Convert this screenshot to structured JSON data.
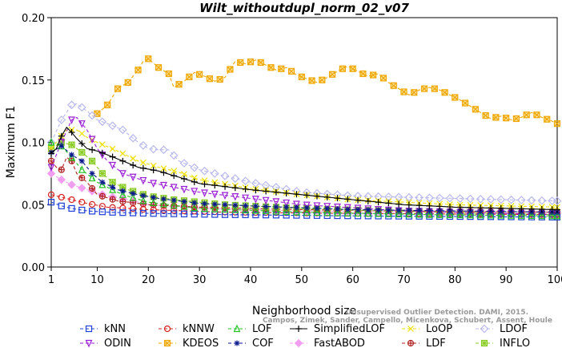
{
  "credit": {
    "line1": "Unsupervised Outlier Detection. DAMI, 2015.",
    "line2": "Campos, Zimek, Sander, Campello, Micenkova, Schubert, Assent, Houle"
  },
  "chart_data": {
    "type": "line",
    "title": "Wilt_withoutdupl_norm_02_v07",
    "xlabel": "Neighborhood size",
    "ylabel": "Maximum F1",
    "xlim": [
      1,
      100
    ],
    "ylim": [
      0,
      0.2
    ],
    "xticks": [
      1,
      10,
      20,
      30,
      40,
      50,
      60,
      70,
      80,
      90,
      100
    ],
    "yticks": [
      0.0,
      0.05,
      0.1,
      0.15,
      0.2
    ],
    "ytick_labels": [
      "0.00",
      "0.05",
      "0.10",
      "0.15",
      "0.20"
    ],
    "grid": false,
    "legend_position": "bottom",
    "series": [
      {
        "name": "kNN",
        "color": "#1f3fd6",
        "marker": "square",
        "dash": "4,3",
        "points": [
          [
            1,
            0.052
          ],
          [
            3,
            0.049
          ],
          [
            5,
            0.047
          ],
          [
            8,
            0.045
          ],
          [
            12,
            0.044
          ],
          [
            20,
            0.043
          ],
          [
            35,
            0.042
          ],
          [
            60,
            0.041
          ],
          [
            100,
            0.04
          ]
        ]
      },
      {
        "name": "kNNW",
        "color": "#d62020",
        "marker": "circle",
        "dash": "4,3",
        "points": [
          [
            1,
            0.058
          ],
          [
            3,
            0.056
          ],
          [
            5,
            0.054
          ],
          [
            8,
            0.051
          ],
          [
            12,
            0.048
          ],
          [
            20,
            0.046
          ],
          [
            35,
            0.044
          ],
          [
            60,
            0.043
          ],
          [
            100,
            0.042
          ]
        ]
      },
      {
        "name": "LOF",
        "color": "#22c422",
        "marker": "triangle",
        "dash": "4,3",
        "points": [
          [
            1,
            0.1
          ],
          [
            2,
            0.099
          ],
          [
            3,
            0.097
          ],
          [
            5,
            0.088
          ],
          [
            7,
            0.078
          ],
          [
            10,
            0.068
          ],
          [
            15,
            0.058
          ],
          [
            20,
            0.052
          ],
          [
            30,
            0.047
          ],
          [
            50,
            0.044
          ],
          [
            75,
            0.042
          ],
          [
            100,
            0.041
          ]
        ]
      },
      {
        "name": "SimplifiedLOF",
        "color": "#000000",
        "marker": "plus",
        "dash": "",
        "points": [
          [
            1,
            0.091
          ],
          [
            2,
            0.095
          ],
          [
            3,
            0.105
          ],
          [
            4,
            0.112
          ],
          [
            5,
            0.108
          ],
          [
            6,
            0.103
          ],
          [
            8,
            0.095
          ],
          [
            10,
            0.093
          ],
          [
            12,
            0.09
          ],
          [
            15,
            0.085
          ],
          [
            18,
            0.08
          ],
          [
            22,
            0.077
          ],
          [
            26,
            0.072
          ],
          [
            30,
            0.067
          ],
          [
            40,
            0.062
          ],
          [
            50,
            0.058
          ],
          [
            60,
            0.054
          ],
          [
            70,
            0.05
          ],
          [
            80,
            0.048
          ],
          [
            90,
            0.047
          ],
          [
            100,
            0.046
          ]
        ]
      },
      {
        "name": "LoOP",
        "color": "#f0e000",
        "marker": "x",
        "dash": "4,3",
        "points": [
          [
            1,
            0.095
          ],
          [
            2,
            0.1
          ],
          [
            4,
            0.11
          ],
          [
            6,
            0.11
          ],
          [
            8,
            0.104
          ],
          [
            10,
            0.1
          ],
          [
            14,
            0.093
          ],
          [
            18,
            0.085
          ],
          [
            22,
            0.08
          ],
          [
            26,
            0.076
          ],
          [
            30,
            0.07
          ],
          [
            40,
            0.063
          ],
          [
            50,
            0.058
          ],
          [
            60,
            0.054
          ],
          [
            80,
            0.05
          ],
          [
            100,
            0.048
          ]
        ]
      },
      {
        "name": "LDOF",
        "color": "#b8b8ee",
        "marker": "diamond",
        "dash": "4,3",
        "points": [
          [
            1,
            0.1
          ],
          [
            3,
            0.118
          ],
          [
            5,
            0.13
          ],
          [
            6,
            0.131
          ],
          [
            8,
            0.125
          ],
          [
            10,
            0.118
          ],
          [
            12,
            0.115
          ],
          [
            15,
            0.11
          ],
          [
            18,
            0.1
          ],
          [
            20,
            0.095
          ],
          [
            22,
            0.094
          ],
          [
            24,
            0.094
          ],
          [
            26,
            0.085
          ],
          [
            30,
            0.078
          ],
          [
            40,
            0.068
          ],
          [
            50,
            0.06
          ],
          [
            60,
            0.057
          ],
          [
            70,
            0.056
          ],
          [
            80,
            0.055
          ],
          [
            90,
            0.054
          ],
          [
            100,
            0.053
          ]
        ]
      },
      {
        "name": "ODIN",
        "color": "#9b1fd6",
        "marker": "triangle-down",
        "dash": "4,3",
        "points": [
          [
            1,
            0.08
          ],
          [
            3,
            0.1
          ],
          [
            5,
            0.118
          ],
          [
            6,
            0.12
          ],
          [
            8,
            0.11
          ],
          [
            10,
            0.095
          ],
          [
            12,
            0.085
          ],
          [
            15,
            0.075
          ],
          [
            20,
            0.068
          ],
          [
            25,
            0.064
          ],
          [
            30,
            0.06
          ],
          [
            40,
            0.055
          ],
          [
            50,
            0.05
          ],
          [
            70,
            0.045
          ],
          [
            100,
            0.042
          ]
        ]
      },
      {
        "name": "KDEOS",
        "color": "#f0a800",
        "marker": "box-x",
        "dash": "4,3",
        "points": [
          [
            10,
            0.123
          ],
          [
            12,
            0.13
          ],
          [
            14,
            0.143
          ],
          [
            16,
            0.148
          ],
          [
            18,
            0.158
          ],
          [
            19,
            0.165
          ],
          [
            20,
            0.167
          ],
          [
            22,
            0.16
          ],
          [
            24,
            0.155
          ],
          [
            25,
            0.144
          ],
          [
            27,
            0.149
          ],
          [
            29,
            0.156
          ],
          [
            31,
            0.153
          ],
          [
            33,
            0.149
          ],
          [
            35,
            0.152
          ],
          [
            37,
            0.165
          ],
          [
            39,
            0.163
          ],
          [
            41,
            0.166
          ],
          [
            43,
            0.162
          ],
          [
            45,
            0.158
          ],
          [
            47,
            0.16
          ],
          [
            49,
            0.154
          ],
          [
            51,
            0.151
          ],
          [
            53,
            0.148
          ],
          [
            55,
            0.152
          ],
          [
            57,
            0.157
          ],
          [
            59,
            0.161
          ],
          [
            61,
            0.157
          ],
          [
            63,
            0.153
          ],
          [
            65,
            0.155
          ],
          [
            67,
            0.148
          ],
          [
            69,
            0.143
          ],
          [
            71,
            0.138
          ],
          [
            73,
            0.142
          ],
          [
            75,
            0.144
          ],
          [
            77,
            0.142
          ],
          [
            79,
            0.138
          ],
          [
            81,
            0.134
          ],
          [
            83,
            0.129
          ],
          [
            85,
            0.124
          ],
          [
            87,
            0.119
          ],
          [
            89,
            0.121
          ],
          [
            91,
            0.118
          ],
          [
            93,
            0.12
          ],
          [
            95,
            0.124
          ],
          [
            97,
            0.12
          ],
          [
            99,
            0.117
          ],
          [
            100,
            0.115
          ]
        ]
      },
      {
        "name": "COF",
        "color": "#0a1a8c",
        "marker": "asterisk",
        "dash": "4,3",
        "points": [
          [
            1,
            0.092
          ],
          [
            3,
            0.097
          ],
          [
            5,
            0.09
          ],
          [
            7,
            0.085
          ],
          [
            9,
            0.075
          ],
          [
            11,
            0.068
          ],
          [
            14,
            0.062
          ],
          [
            18,
            0.058
          ],
          [
            22,
            0.055
          ],
          [
            30,
            0.051
          ],
          [
            40,
            0.049
          ],
          [
            60,
            0.046
          ],
          [
            80,
            0.045
          ],
          [
            100,
            0.044
          ]
        ]
      },
      {
        "name": "FastABOD",
        "color": "#f29ef0",
        "marker": "diamond-filled",
        "dash": "4,3",
        "points": [
          [
            1,
            0.075
          ],
          [
            3,
            0.07
          ],
          [
            5,
            0.066
          ],
          [
            8,
            0.062
          ],
          [
            12,
            0.057
          ],
          [
            16,
            0.054
          ],
          [
            20,
            0.05
          ],
          [
            30,
            0.047
          ],
          [
            50,
            0.045
          ],
          [
            100,
            0.043
          ]
        ]
      },
      {
        "name": "LDF",
        "color": "#b02020",
        "marker": "circle-plus",
        "dash": "4,3",
        "points": [
          [
            1,
            0.085
          ],
          [
            2,
            0.08
          ],
          [
            3,
            0.078
          ],
          [
            4,
            0.088
          ],
          [
            5,
            0.085
          ],
          [
            6,
            0.075
          ],
          [
            8,
            0.068
          ],
          [
            10,
            0.058
          ],
          [
            14,
            0.053
          ],
          [
            20,
            0.05
          ],
          [
            30,
            0.048
          ],
          [
            50,
            0.046
          ],
          [
            70,
            0.045
          ],
          [
            100,
            0.044
          ]
        ]
      },
      {
        "name": "INFLO",
        "color": "#88cc22",
        "marker": "box-star",
        "dash": "4,3",
        "points": [
          [
            1,
            0.095
          ],
          [
            3,
            0.1
          ],
          [
            5,
            0.098
          ],
          [
            7,
            0.092
          ],
          [
            9,
            0.085
          ],
          [
            11,
            0.075
          ],
          [
            13,
            0.068
          ],
          [
            16,
            0.062
          ],
          [
            20,
            0.057
          ],
          [
            25,
            0.054
          ],
          [
            35,
            0.05
          ],
          [
            50,
            0.047
          ],
          [
            75,
            0.044
          ],
          [
            100,
            0.042
          ]
        ]
      }
    ]
  }
}
